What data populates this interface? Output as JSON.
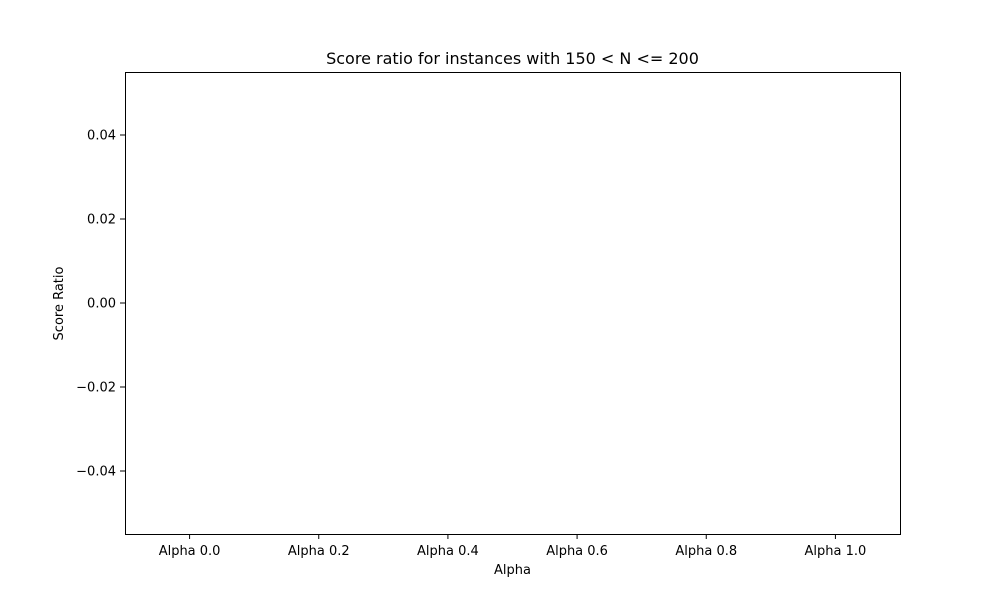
{
  "chart_data": {
    "type": "bar",
    "title": "Score ratio for instances with 150 < N <= 200",
    "xlabel": "Alpha",
    "ylabel": "Score Ratio",
    "categories": [
      "Alpha 0.0",
      "Alpha 0.2",
      "Alpha 0.4",
      "Alpha 0.6",
      "Alpha 0.8",
      "Alpha 1.0"
    ],
    "series": [
      {
        "values": [
          0,
          0,
          0,
          0,
          0,
          0
        ]
      }
    ],
    "ylim": [
      -0.055,
      0.055
    ],
    "yticks": [
      0.04,
      0.02,
      0.0,
      -0.02,
      -0.04
    ],
    "ytick_labels": [
      "0.04",
      "0.02",
      "0.00",
      "−0.02",
      "−0.04"
    ],
    "grid": false,
    "legend": "none"
  }
}
